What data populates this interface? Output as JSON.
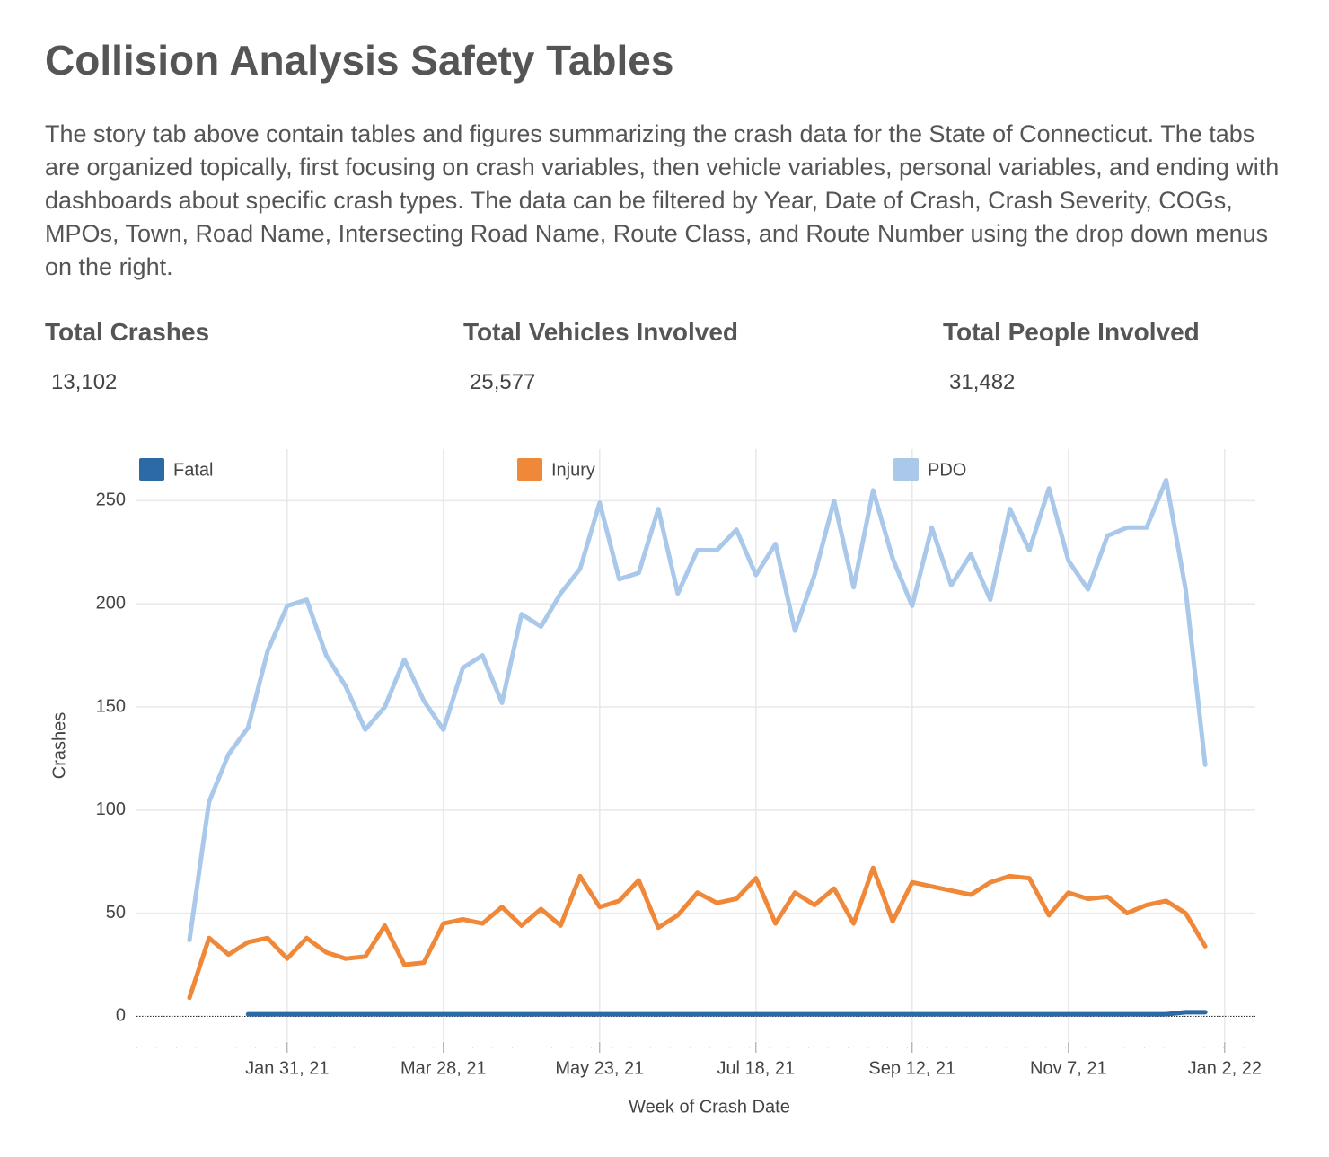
{
  "header": {
    "title": "Collision Analysis Safety Tables",
    "description": "The story tab above contain tables and figures summarizing the crash data for the State of Connecticut. The tabs are organized topically, first focusing on crash variables, then vehicle variables, personal variables, and ending with dashboards about specific crash types. The data can be filtered by Year, Date of Crash, Crash Severity, COGs, MPOs, Town, Road Name, Intersecting Road Name, Route Class, and Route Number using the drop down menus on the right."
  },
  "kpis": [
    {
      "label": "Total Crashes",
      "value": "13,102"
    },
    {
      "label": "Total Vehicles Involved",
      "value": "25,577"
    },
    {
      "label": "Total People Involved",
      "value": "31,482"
    }
  ],
  "chart_data": {
    "type": "line",
    "x_label": "Week of Crash Date",
    "y_label": "Crashes",
    "x": [
      "2020-12-27",
      "2021-01-03",
      "2021-01-10",
      "2021-01-17",
      "2021-01-24",
      "2021-01-31",
      "2021-02-07",
      "2021-02-14",
      "2021-02-21",
      "2021-02-28",
      "2021-03-07",
      "2021-03-14",
      "2021-03-21",
      "2021-03-28",
      "2021-04-04",
      "2021-04-11",
      "2021-04-18",
      "2021-04-25",
      "2021-05-02",
      "2021-05-09",
      "2021-05-16",
      "2021-05-23",
      "2021-05-30",
      "2021-06-06",
      "2021-06-13",
      "2021-06-20",
      "2021-06-27",
      "2021-07-04",
      "2021-07-11",
      "2021-07-18",
      "2021-07-25",
      "2021-08-01",
      "2021-08-08",
      "2021-08-15",
      "2021-08-22",
      "2021-08-29",
      "2021-09-05",
      "2021-09-12",
      "2021-09-19",
      "2021-09-26",
      "2021-10-03",
      "2021-10-10",
      "2021-10-17",
      "2021-10-24",
      "2021-10-31",
      "2021-11-07",
      "2021-11-14",
      "2021-11-21",
      "2021-11-28",
      "2021-12-05",
      "2021-12-12",
      "2021-12-19",
      "2021-12-26"
    ],
    "series": [
      {
        "name": "Fatal",
        "color": "#2c6aa5",
        "values": [
          null,
          null,
          null,
          1,
          1,
          1,
          1,
          1,
          1,
          1,
          1,
          1,
          1,
          1,
          1,
          1,
          1,
          1,
          1,
          1,
          1,
          1,
          1,
          1,
          1,
          1,
          1,
          1,
          1,
          1,
          1,
          1,
          1,
          1,
          1,
          1,
          1,
          1,
          1,
          1,
          1,
          1,
          1,
          1,
          1,
          1,
          1,
          1,
          1,
          1,
          1,
          2,
          2
        ]
      },
      {
        "name": "Injury",
        "color": "#f0883a",
        "values": [
          9,
          38,
          30,
          36,
          38,
          28,
          38,
          31,
          28,
          29,
          44,
          25,
          26,
          45,
          47,
          45,
          53,
          44,
          52,
          44,
          68,
          53,
          56,
          66,
          43,
          49,
          60,
          55,
          57,
          67,
          45,
          60,
          54,
          62,
          45,
          72,
          46,
          65,
          63,
          61,
          59,
          65,
          68,
          67,
          49,
          60,
          57,
          58,
          50,
          54,
          56,
          50,
          34
        ]
      },
      {
        "name": "PDO",
        "color": "#a9c8ea",
        "values": [
          37,
          104,
          127,
          140,
          177,
          199,
          202,
          175,
          160,
          139,
          150,
          173,
          153,
          139,
          169,
          175,
          152,
          195,
          189,
          205,
          217,
          249,
          212,
          215,
          246,
          205,
          226,
          226,
          236,
          214,
          229,
          187,
          214,
          250,
          208,
          255,
          222,
          199,
          237,
          209,
          224,
          202,
          246,
          226,
          256,
          221,
          207,
          233,
          237,
          237,
          260,
          207,
          122
        ]
      }
    ],
    "xlim": [
      "2020-12-08",
      "2022-01-13"
    ],
    "xticks": [
      {
        "value": "2021-01-31",
        "label": "Jan 31, 21"
      },
      {
        "value": "2021-03-28",
        "label": "Mar 28, 21"
      },
      {
        "value": "2021-05-23",
        "label": "May 23, 21"
      },
      {
        "value": "2021-07-18",
        "label": "Jul 18, 21"
      },
      {
        "value": "2021-09-12",
        "label": "Sep 12, 21"
      },
      {
        "value": "2021-11-07",
        "label": "Nov 7, 21"
      },
      {
        "value": "2022-01-02",
        "label": "Jan 2, 22"
      }
    ],
    "ylim": [
      -12,
      275
    ],
    "yticks": [
      0,
      50,
      100,
      150,
      200,
      250
    ],
    "grid": true,
    "legend": "top"
  }
}
